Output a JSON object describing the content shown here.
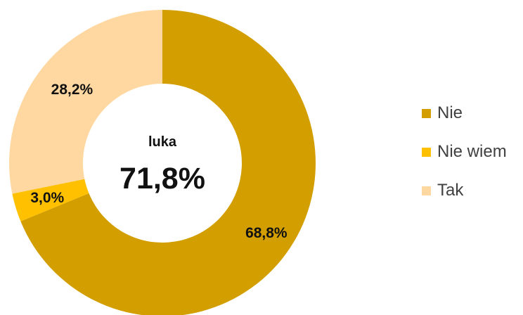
{
  "chart_data": {
    "type": "pie",
    "categories": [
      "Nie",
      "Nie wiem",
      "Tak"
    ],
    "values": [
      68.8,
      3.0,
      28.2
    ],
    "value_labels": [
      "68,8%",
      "3,0%",
      "28,2%"
    ],
    "colors": [
      "#D39E00",
      "#FFC000",
      "#FFD8A1"
    ],
    "center_title": "luka",
    "center_value": "71,8%",
    "legend_placement": "right"
  }
}
